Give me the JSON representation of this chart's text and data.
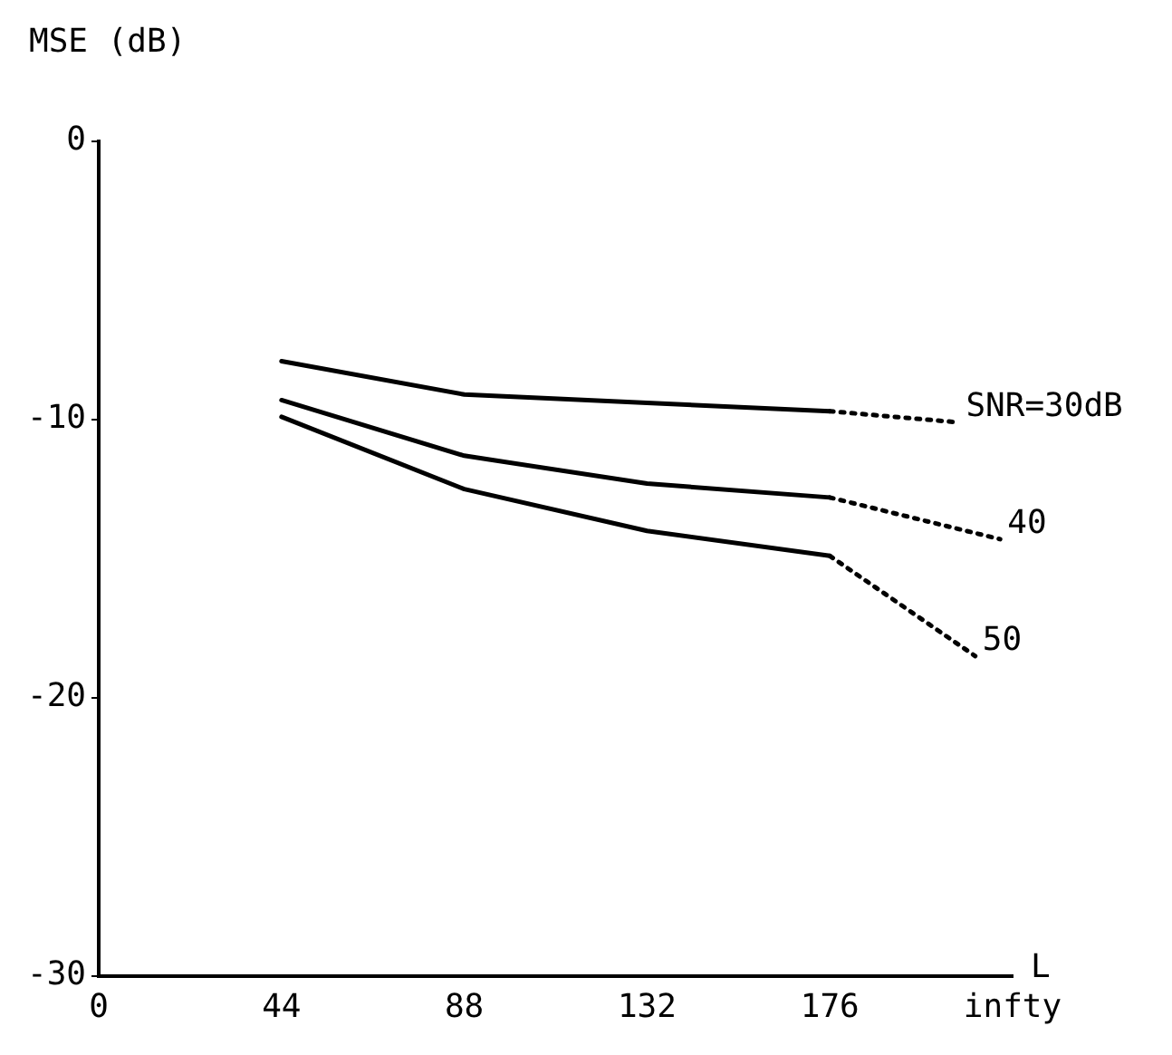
{
  "chart_data": {
    "type": "line",
    "ylabel": "MSE (dB)",
    "xlabel": "L",
    "xlim": [
      0,
      220
    ],
    "xticks": [
      0,
      44,
      88,
      132,
      176,
      {
        "value": 220,
        "label": "infty"
      }
    ],
    "ylim": [
      -30,
      0
    ],
    "yticks": [
      0,
      -10,
      -20,
      -30
    ],
    "grid": false,
    "legend": false,
    "marker": "none",
    "series": [
      {
        "color": "#000000",
        "x": [
          44,
          88,
          132,
          176
        ],
        "values": [
          -7.9,
          -9.1,
          -9.4,
          -9.7
        ],
        "line_style": "solid"
      },
      {
        "color": "#000000",
        "x": [
          44,
          88,
          132,
          176
        ],
        "values": [
          -9.3,
          -11.3,
          -12.3,
          -12.8
        ],
        "line_style": "solid"
      },
      {
        "color": "#000000",
        "x": [
          44,
          88,
          132,
          176
        ],
        "values": [
          -9.9,
          -12.5,
          -14.0,
          -14.9
        ],
        "line_style": "solid"
      },
      {
        "name": "SNR=30dB",
        "color": "#000000",
        "x": [
          176,
          207
        ],
        "values": [
          -9.7,
          -10.1
        ],
        "line_style": "dotted"
      },
      {
        "name": "40",
        "color": "#000000",
        "x": [
          176,
          217
        ],
        "values": [
          -12.8,
          -14.3
        ],
        "line_style": "dotted"
      },
      {
        "name": "50",
        "color": "#000000",
        "x": [
          176,
          211
        ],
        "values": [
          -14.9,
          -18.5
        ],
        "line_style": "dotted"
      }
    ]
  }
}
